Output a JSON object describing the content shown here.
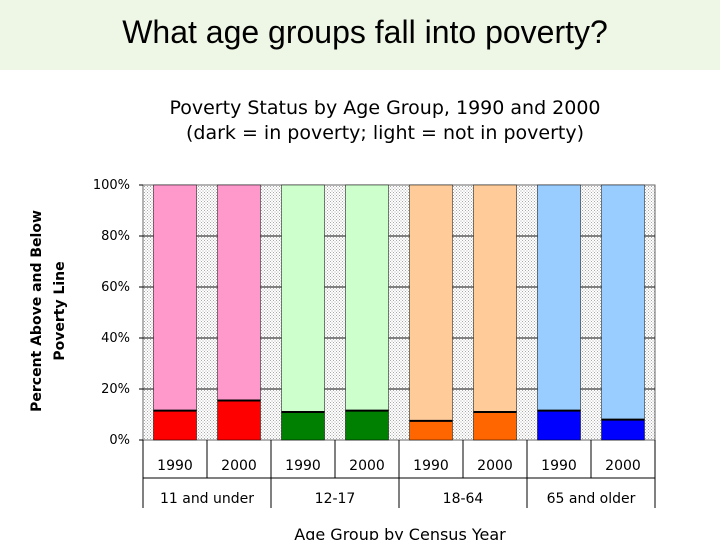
{
  "slide": {
    "title": "What age groups fall into poverty?"
  },
  "chart_data": {
    "type": "bar",
    "stacked": true,
    "title": "Poverty Status by Age Group, 1990 and 2000",
    "subtitle": "(dark = in poverty; light = not in poverty)",
    "xlabel": "Age Group by Census Year",
    "ylabel_lines": [
      "Percent Above and Below",
      "Poverty Line"
    ],
    "ylim": [
      0,
      100
    ],
    "yticks": [
      "0%",
      "20%",
      "40%",
      "60%",
      "80%",
      "100%"
    ],
    "grid": true,
    "groups": [
      {
        "name": "11 and under",
        "bars": [
          {
            "year": "1990",
            "in_poverty": 11.5
          },
          {
            "year": "2000",
            "in_poverty": 15.5
          }
        ]
      },
      {
        "name": "12-17",
        "bars": [
          {
            "year": "1990",
            "in_poverty": 11
          },
          {
            "year": "2000",
            "in_poverty": 11.5
          }
        ]
      },
      {
        "name": "18-64",
        "bars": [
          {
            "year": "1990",
            "in_poverty": 7.5
          },
          {
            "year": "2000",
            "in_poverty": 11
          }
        ]
      },
      {
        "name": "65 and older",
        "bars": [
          {
            "year": "1990",
            "in_poverty": 11.5
          },
          {
            "year": "2000",
            "in_poverty": 8
          }
        ]
      }
    ],
    "series": [
      {
        "name": "in poverty",
        "colors": [
          "#ff0000",
          "#008000",
          "#ff6600",
          "#0000ff"
        ]
      },
      {
        "name": "not in poverty",
        "colors": [
          "#ff99cc",
          "#ccffcc",
          "#ffcc99",
          "#99ccff"
        ]
      }
    ]
  }
}
